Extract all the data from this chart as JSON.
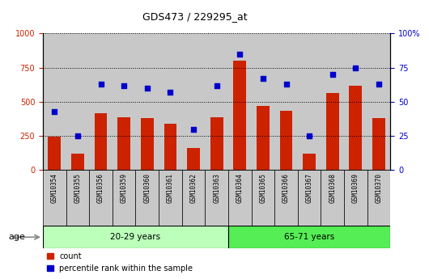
{
  "title": "GDS473 / 229295_at",
  "samples": [
    "GSM10354",
    "GSM10355",
    "GSM10356",
    "GSM10359",
    "GSM10360",
    "GSM10361",
    "GSM10362",
    "GSM10363",
    "GSM10364",
    "GSM10365",
    "GSM10366",
    "GSM10367",
    "GSM10368",
    "GSM10369",
    "GSM10370"
  ],
  "counts": [
    245,
    120,
    415,
    385,
    380,
    340,
    165,
    390,
    800,
    470,
    435,
    120,
    565,
    620,
    380
  ],
  "percentiles": [
    43,
    25,
    63,
    62,
    60,
    57,
    30,
    62,
    85,
    67,
    63,
    25,
    70,
    75,
    63
  ],
  "n_group1": 8,
  "group1_label": "20-29 years",
  "group2_label": "65-71 years",
  "ylim_left": [
    0,
    1000
  ],
  "ylim_right": [
    0,
    100
  ],
  "yticks_left": [
    0,
    250,
    500,
    750,
    1000
  ],
  "yticks_right": [
    0,
    25,
    50,
    75,
    100
  ],
  "ytick_labels_left": [
    "0",
    "250",
    "500",
    "750",
    "1000"
  ],
  "ytick_labels_right": [
    "0",
    "25",
    "50",
    "75",
    "100%"
  ],
  "bar_color": "#CC2200",
  "scatter_color": "#0000CC",
  "bg_color": "#C8C8C8",
  "group1_color": "#BBFFBB",
  "group2_color": "#55EE55",
  "legend_count_label": "count",
  "legend_pct_label": "percentile rank within the sample",
  "age_label": "age"
}
